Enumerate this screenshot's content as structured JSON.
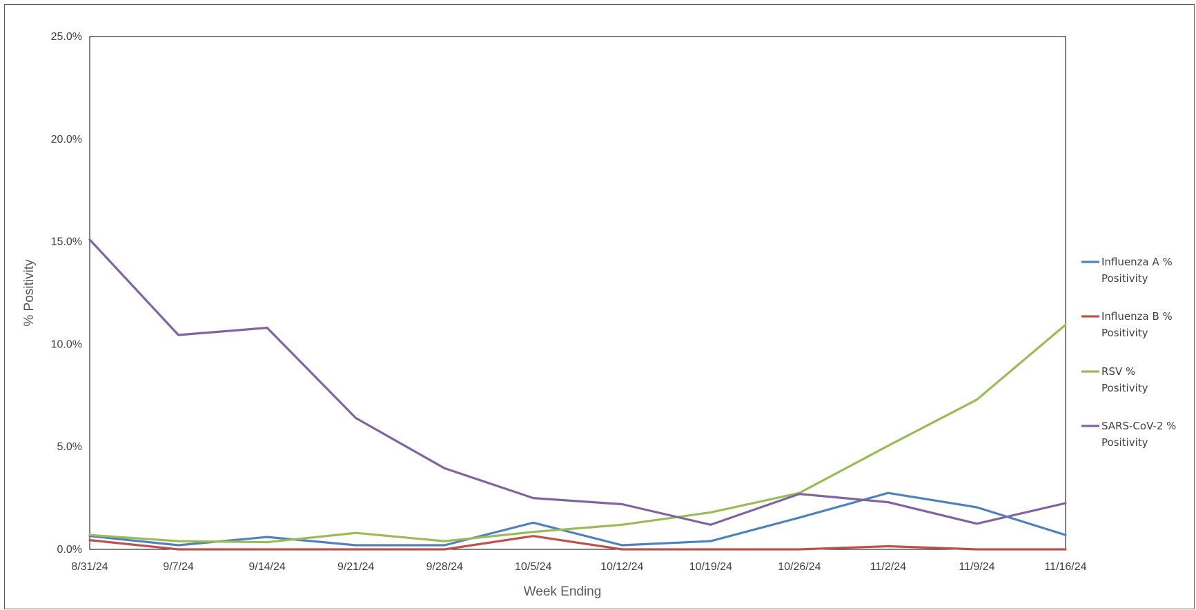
{
  "chart_data": {
    "type": "line",
    "title": "",
    "xlabel": "Week Ending",
    "ylabel": "% Positivity",
    "categories": [
      "8/31/24",
      "9/7/24",
      "9/14/24",
      "9/21/24",
      "9/28/24",
      "10/5/24",
      "10/12/24",
      "10/19/24",
      "10/26/24",
      "11/2/24",
      "11/9/24",
      "11/16/24"
    ],
    "yticks": [
      "0.0%",
      "5.0%",
      "10.0%",
      "15.0%",
      "20.0%",
      "25.0%"
    ],
    "ylim": [
      0,
      25
    ],
    "grid": false,
    "legend_position": "right",
    "series": [
      {
        "name": "Influenza A % Positivity",
        "color": "#4f81bd",
        "values": [
          0.65,
          0.2,
          0.6,
          0.2,
          0.2,
          1.3,
          0.2,
          0.4,
          1.55,
          2.75,
          2.05,
          0.7
        ]
      },
      {
        "name": "Influenza B % Positivity",
        "color": "#c0504d",
        "values": [
          0.45,
          0.0,
          0.0,
          0.0,
          0.0,
          0.65,
          0.0,
          0.0,
          0.0,
          0.15,
          0.0,
          0.0
        ]
      },
      {
        "name": "RSV % Positivity",
        "color": "#9bbb59",
        "values": [
          0.7,
          0.4,
          0.35,
          0.8,
          0.4,
          0.85,
          1.2,
          1.8,
          2.75,
          5.05,
          7.3,
          10.95
        ]
      },
      {
        "name": "SARS-CoV-2 % Positivity",
        "color": "#8064a2",
        "values": [
          15.1,
          10.45,
          10.8,
          6.4,
          3.95,
          2.5,
          2.2,
          1.2,
          2.7,
          2.3,
          1.25,
          2.25
        ]
      }
    ]
  }
}
